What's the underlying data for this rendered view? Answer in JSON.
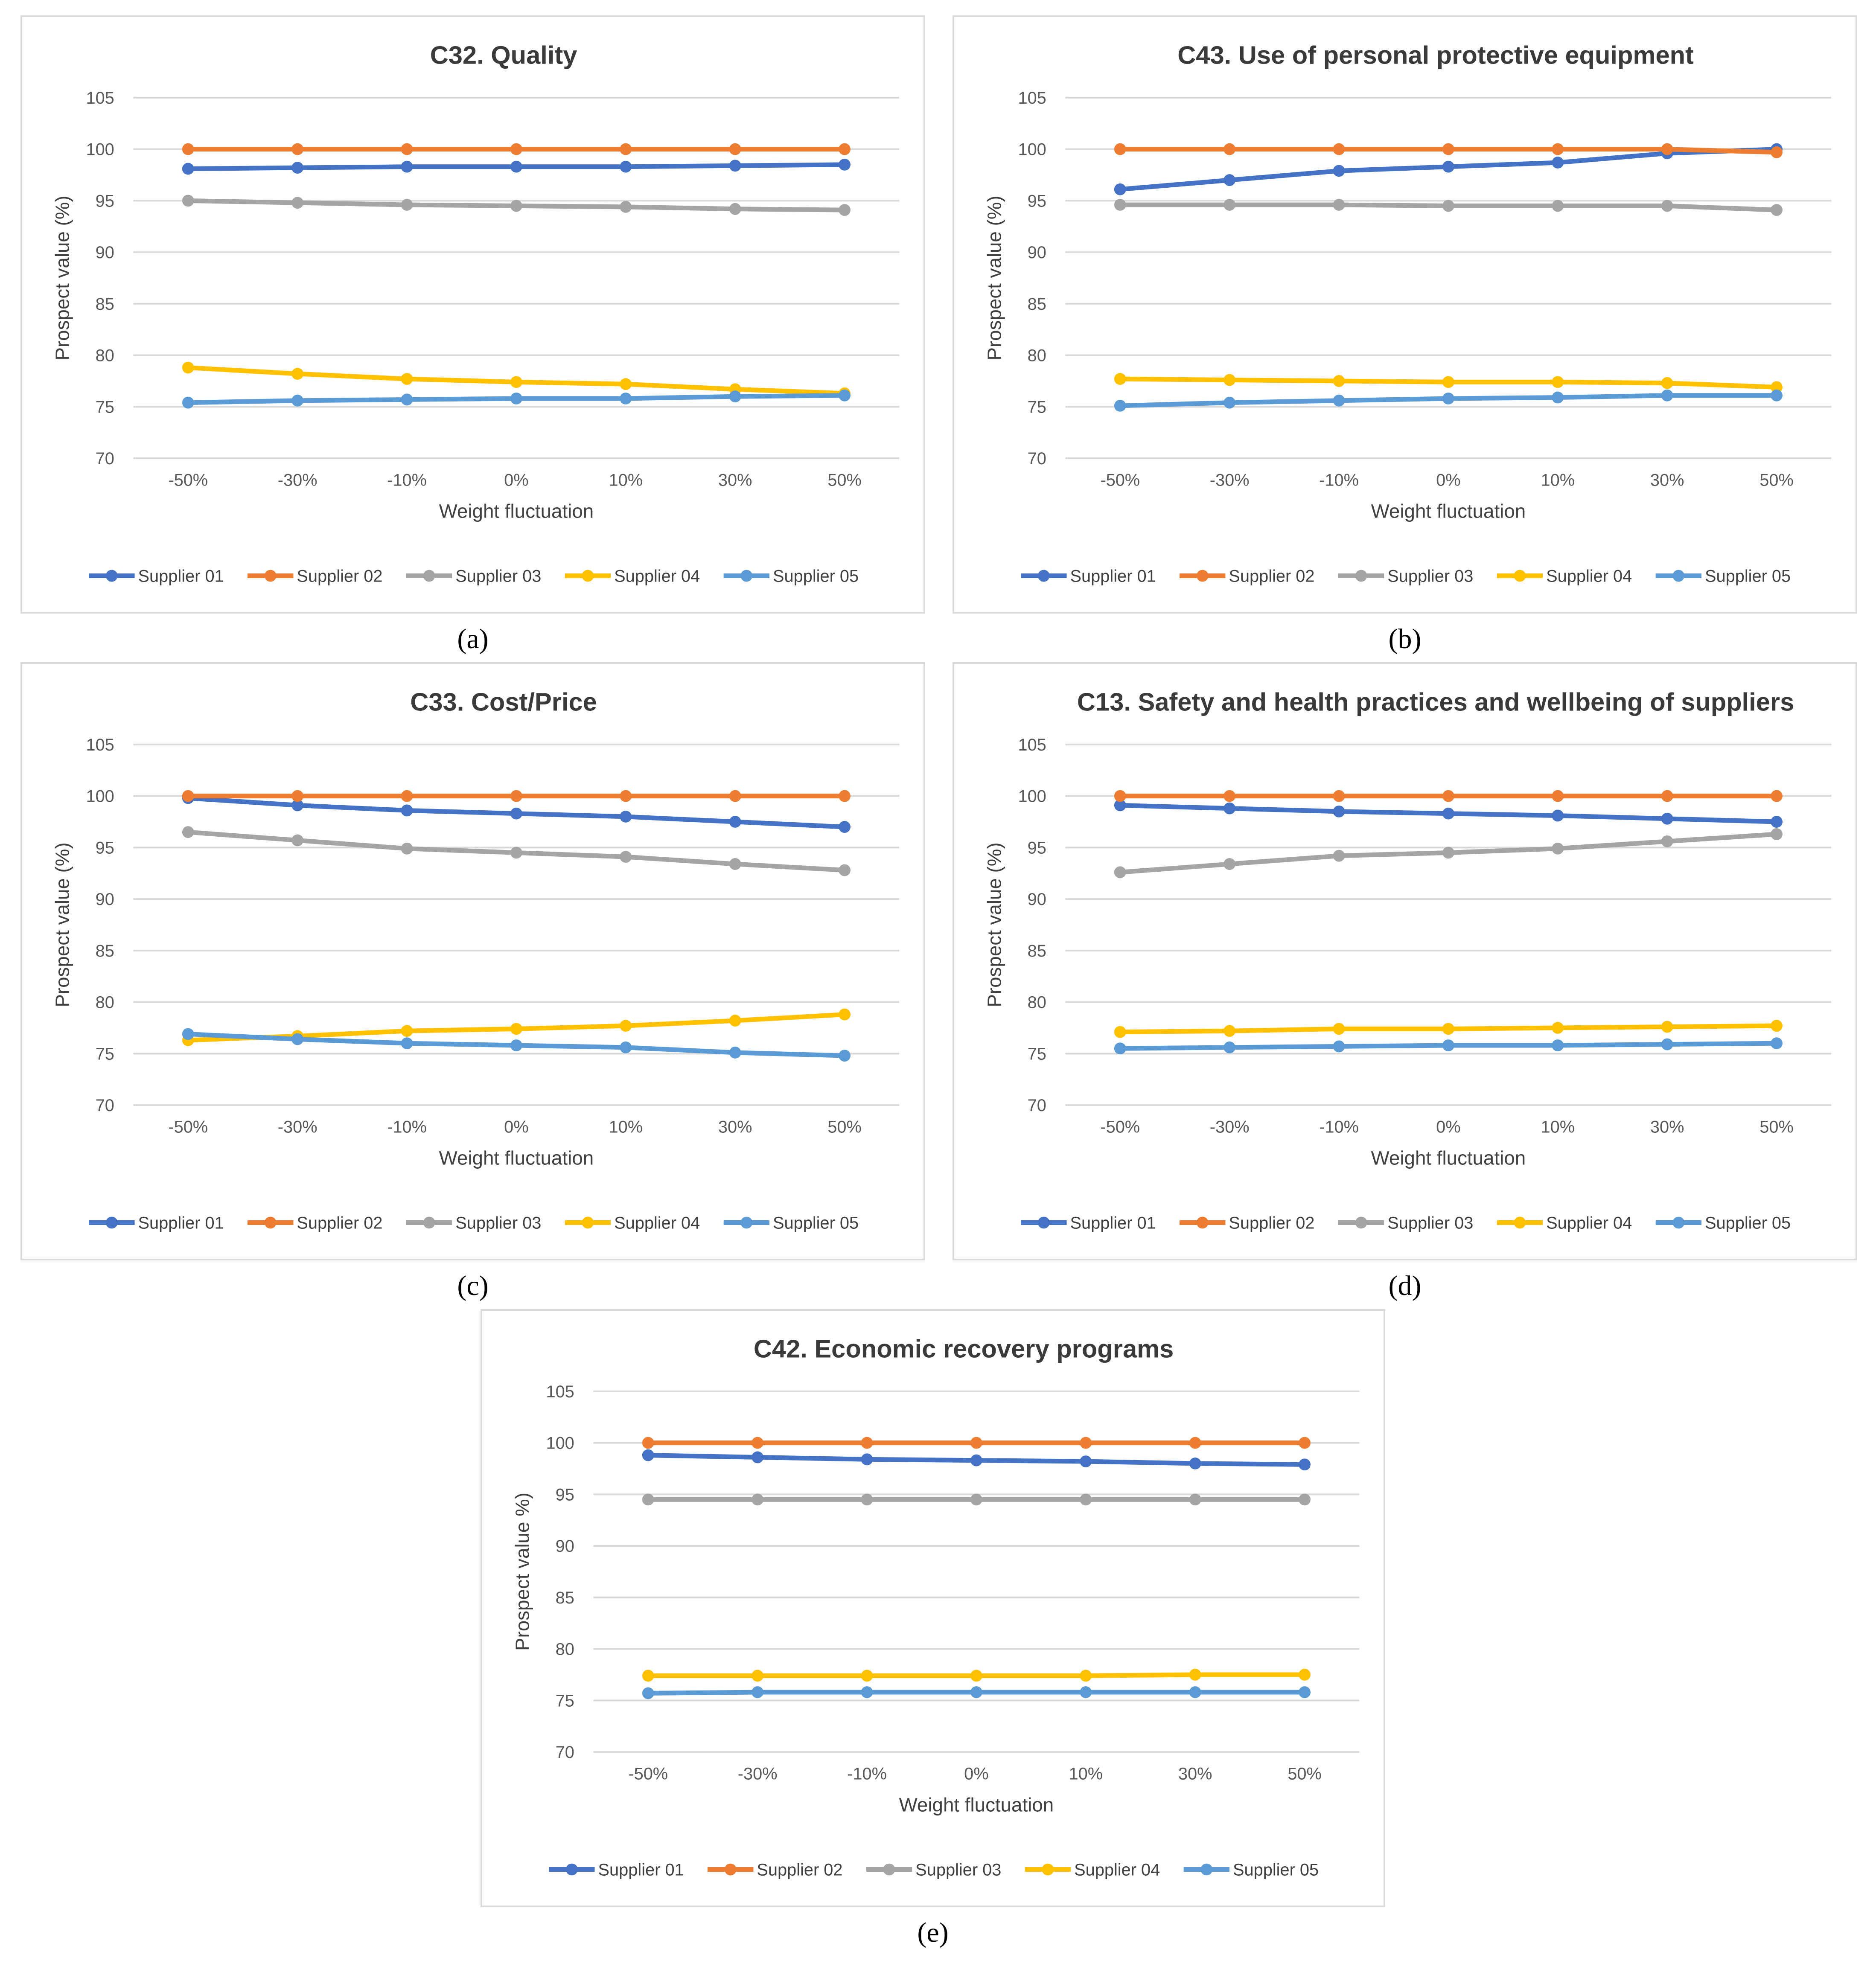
{
  "colors": {
    "supplier_01": "#4472C4",
    "supplier_02": "#ED7D31",
    "supplier_03": "#A5A5A5",
    "supplier_04": "#FFC000",
    "supplier_05": "#5B9BD5",
    "gridline": "#d9d9d9"
  },
  "panels": [
    {
      "id": "a",
      "label": "(a)"
    },
    {
      "id": "b",
      "label": "(b)"
    },
    {
      "id": "c",
      "label": "(c)"
    },
    {
      "id": "d",
      "label": "(d)"
    },
    {
      "id": "e",
      "label": "(e)"
    }
  ],
  "chart_data": [
    {
      "panel": "a",
      "type": "line",
      "title": "C32. Quality",
      "xlabel": "Weight fluctuation",
      "ylabel": "Prospect value (%)",
      "ylim": [
        70,
        105
      ],
      "yticks": [
        70,
        75,
        80,
        85,
        90,
        95,
        100,
        105
      ],
      "grid": true,
      "legend": "bottom",
      "categories": [
        "-50%",
        "-30%",
        "-10%",
        "0%",
        "10%",
        "30%",
        "50%"
      ],
      "series": [
        {
          "name": "Supplier 01",
          "color_key": "supplier_01",
          "values": [
            98.1,
            98.2,
            98.3,
            98.3,
            98.3,
            98.4,
            98.5
          ]
        },
        {
          "name": "Supplier 02",
          "color_key": "supplier_02",
          "values": [
            100,
            100,
            100,
            100,
            100,
            100,
            100
          ]
        },
        {
          "name": "Supplier 03",
          "color_key": "supplier_03",
          "values": [
            95.0,
            94.8,
            94.6,
            94.5,
            94.4,
            94.2,
            94.1
          ]
        },
        {
          "name": "Supplier 04",
          "color_key": "supplier_04",
          "values": [
            78.8,
            78.2,
            77.7,
            77.4,
            77.2,
            76.7,
            76.3
          ]
        },
        {
          "name": "Supplier 05",
          "color_key": "supplier_05",
          "values": [
            75.4,
            75.6,
            75.7,
            75.8,
            75.8,
            76.0,
            76.1
          ]
        }
      ]
    },
    {
      "panel": "b",
      "type": "line",
      "title": "C43. Use of personal protective equipment",
      "xlabel": "Weight fluctuation",
      "ylabel": "Prospect value (%)",
      "ylim": [
        70,
        105
      ],
      "yticks": [
        70,
        75,
        80,
        85,
        90,
        95,
        100,
        105
      ],
      "grid": true,
      "legend": "bottom",
      "categories": [
        "-50%",
        "-30%",
        "-10%",
        "0%",
        "10%",
        "30%",
        "50%"
      ],
      "series": [
        {
          "name": "Supplier 01",
          "color_key": "supplier_01",
          "values": [
            96.1,
            97.0,
            97.9,
            98.3,
            98.7,
            99.6,
            100.0
          ]
        },
        {
          "name": "Supplier 02",
          "color_key": "supplier_02",
          "values": [
            100,
            100,
            100,
            100,
            100,
            100,
            99.7
          ]
        },
        {
          "name": "Supplier 03",
          "color_key": "supplier_03",
          "values": [
            94.6,
            94.6,
            94.6,
            94.5,
            94.5,
            94.5,
            94.1
          ]
        },
        {
          "name": "Supplier 04",
          "color_key": "supplier_04",
          "values": [
            77.7,
            77.6,
            77.5,
            77.4,
            77.4,
            77.3,
            76.9
          ]
        },
        {
          "name": "Supplier 05",
          "color_key": "supplier_05",
          "values": [
            75.1,
            75.4,
            75.6,
            75.8,
            75.9,
            76.1,
            76.1
          ]
        }
      ]
    },
    {
      "panel": "c",
      "type": "line",
      "title": "C33. Cost/Price",
      "xlabel": "Weight fluctuation",
      "ylabel": "Prospect value (%)",
      "ylim": [
        70,
        105
      ],
      "yticks": [
        70,
        75,
        80,
        85,
        90,
        95,
        100,
        105
      ],
      "grid": true,
      "legend": "bottom",
      "categories": [
        "-50%",
        "-30%",
        "-10%",
        "0%",
        "10%",
        "30%",
        "50%"
      ],
      "series": [
        {
          "name": "Supplier 01",
          "color_key": "supplier_01",
          "values": [
            99.8,
            99.1,
            98.6,
            98.3,
            98.0,
            97.5,
            97.0
          ]
        },
        {
          "name": "Supplier 02",
          "color_key": "supplier_02",
          "values": [
            100,
            100,
            100,
            100,
            100,
            100,
            100
          ]
        },
        {
          "name": "Supplier 03",
          "color_key": "supplier_03",
          "values": [
            96.5,
            95.7,
            94.9,
            94.5,
            94.1,
            93.4,
            92.8
          ]
        },
        {
          "name": "Supplier 04",
          "color_key": "supplier_04",
          "values": [
            76.3,
            76.7,
            77.2,
            77.4,
            77.7,
            78.2,
            78.8
          ]
        },
        {
          "name": "Supplier 05",
          "color_key": "supplier_05",
          "values": [
            76.9,
            76.4,
            76.0,
            75.8,
            75.6,
            75.1,
            74.8
          ]
        }
      ]
    },
    {
      "panel": "d",
      "type": "line",
      "title": "C13. Safety and health practices and wellbeing of suppliers",
      "xlabel": "Weight fluctuation",
      "ylabel": "Prospect value (%)",
      "ylim": [
        70,
        105
      ],
      "yticks": [
        70,
        75,
        80,
        85,
        90,
        95,
        100,
        105
      ],
      "grid": true,
      "legend": "bottom",
      "categories": [
        "-50%",
        "-30%",
        "-10%",
        "0%",
        "10%",
        "30%",
        "50%"
      ],
      "series": [
        {
          "name": "Supplier 01",
          "color_key": "supplier_01",
          "values": [
            99.1,
            98.8,
            98.5,
            98.3,
            98.1,
            97.8,
            97.5
          ]
        },
        {
          "name": "Supplier 02",
          "color_key": "supplier_02",
          "values": [
            100,
            100,
            100,
            100,
            100,
            100,
            100
          ]
        },
        {
          "name": "Supplier 03",
          "color_key": "supplier_03",
          "values": [
            92.6,
            93.4,
            94.2,
            94.5,
            94.9,
            95.6,
            96.3
          ]
        },
        {
          "name": "Supplier 04",
          "color_key": "supplier_04",
          "values": [
            77.1,
            77.2,
            77.4,
            77.4,
            77.5,
            77.6,
            77.7
          ]
        },
        {
          "name": "Supplier 05",
          "color_key": "supplier_05",
          "values": [
            75.5,
            75.6,
            75.7,
            75.8,
            75.8,
            75.9,
            76.0
          ]
        }
      ]
    },
    {
      "panel": "e",
      "type": "line",
      "title": "C42. Economic recovery programs",
      "xlabel": "Weight fluctuation",
      "ylabel": "Prospect value %)",
      "ylim": [
        70,
        105
      ],
      "yticks": [
        70,
        75,
        80,
        85,
        90,
        95,
        100,
        105
      ],
      "grid": true,
      "legend": "bottom",
      "categories": [
        "-50%",
        "-30%",
        "-10%",
        "0%",
        "10%",
        "30%",
        "50%"
      ],
      "series": [
        {
          "name": "Supplier 01",
          "color_key": "supplier_01",
          "values": [
            98.8,
            98.6,
            98.4,
            98.3,
            98.2,
            98.0,
            97.9
          ]
        },
        {
          "name": "Supplier 02",
          "color_key": "supplier_02",
          "values": [
            100,
            100,
            100,
            100,
            100,
            100,
            100
          ]
        },
        {
          "name": "Supplier 03",
          "color_key": "supplier_03",
          "values": [
            94.5,
            94.5,
            94.5,
            94.5,
            94.5,
            94.5,
            94.5
          ]
        },
        {
          "name": "Supplier 04",
          "color_key": "supplier_04",
          "values": [
            77.4,
            77.4,
            77.4,
            77.4,
            77.4,
            77.5,
            77.5
          ]
        },
        {
          "name": "Supplier 05",
          "color_key": "supplier_05",
          "values": [
            75.7,
            75.8,
            75.8,
            75.8,
            75.8,
            75.8,
            75.8
          ]
        }
      ]
    }
  ]
}
